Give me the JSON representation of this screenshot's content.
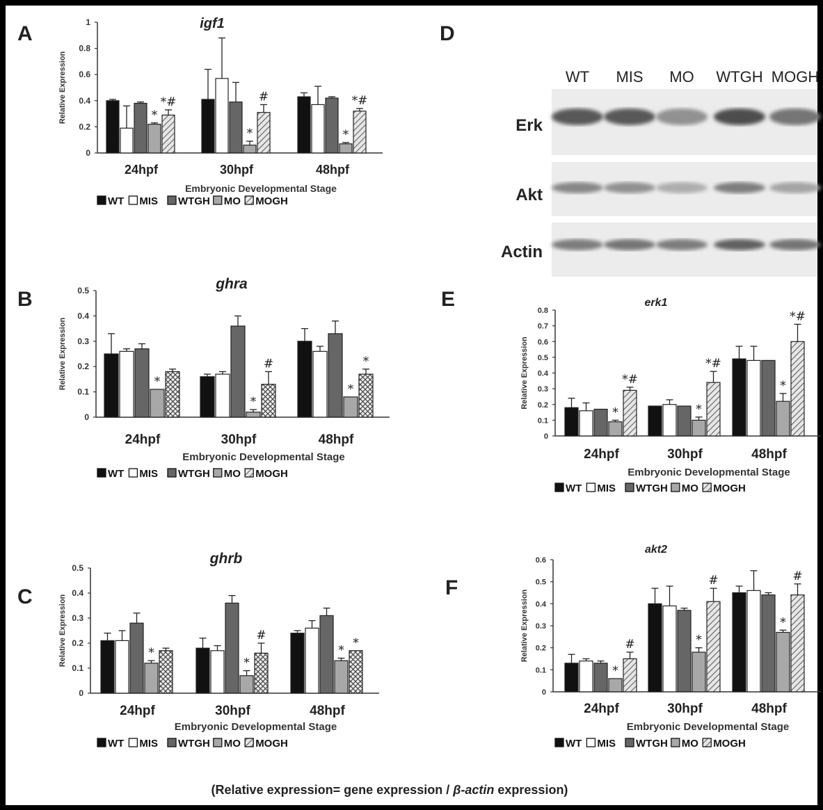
{
  "colors": {
    "WT": "#111111",
    "MIS": "#ffffff",
    "WTGH": "#666666",
    "MO": "#a8a8a8",
    "MOGH": "#bcbcbc",
    "axis": "#333333",
    "text": "#222222"
  },
  "legend": [
    "WT",
    "MIS",
    "WTGH",
    "MO",
    "MOGH"
  ],
  "footnote": {
    "pre": "(Relative expression= gene expression / ",
    "italic": "β-actin",
    "post": " expression)"
  },
  "blot": {
    "letter": "D",
    "lanes": [
      "WT",
      "MIS",
      "MO",
      "WTGH",
      "MOGH"
    ],
    "rows": [
      {
        "label": "Erk",
        "intensity": [
          0.75,
          0.75,
          0.45,
          0.8,
          0.6
        ]
      },
      {
        "label": "Akt",
        "intensity": [
          0.5,
          0.45,
          0.3,
          0.55,
          0.35
        ]
      },
      {
        "label": "Actin",
        "intensity": [
          0.55,
          0.6,
          0.55,
          0.7,
          0.6
        ]
      }
    ]
  },
  "chart_data": [
    {
      "letter": "A",
      "title": "igf1",
      "type": "bar",
      "ylabel": "Relative Expression",
      "xlabel": "Embryonic Developmental Stage",
      "categories": [
        "24hpf",
        "30hpf",
        "48hpf"
      ],
      "yticks": [
        "0",
        "0.2",
        "0.4",
        "0.6",
        "0.8",
        "1"
      ],
      "ylim": [
        0,
        1
      ],
      "series": [
        {
          "name": "WT",
          "values": [
            0.4,
            0.41,
            0.43
          ],
          "errors": [
            0.01,
            0.23,
            0.03
          ]
        },
        {
          "name": "MIS",
          "values": [
            0.19,
            0.57,
            0.37
          ],
          "errors": [
            0.17,
            0.31,
            0.14
          ]
        },
        {
          "name": "WTGH",
          "values": [
            0.38,
            0.39,
            0.42
          ],
          "errors": [
            0.01,
            0.15,
            0.01
          ]
        },
        {
          "name": "MO",
          "values": [
            0.22,
            0.06,
            0.07
          ],
          "errors": [
            0.01,
            0.03,
            0.01
          ]
        },
        {
          "name": "MOGH",
          "values": [
            0.29,
            0.31,
            0.32
          ],
          "errors": [
            0.04,
            0.06,
            0.02
          ]
        }
      ],
      "annotations": [
        [
          "*",
          "*#"
        ],
        [
          "*",
          "#"
        ],
        [
          "*",
          "*#"
        ]
      ]
    },
    {
      "letter": "B",
      "title": "ghra",
      "type": "bar",
      "ylabel": "Relative Expression",
      "xlabel": "Embryonic Developmental Stage",
      "categories": [
        "24hpf",
        "30hpf",
        "48hpf"
      ],
      "yticks": [
        "0",
        "0.1",
        "0.2",
        "0.3",
        "0.4",
        "0.5"
      ],
      "ylim": [
        0,
        0.5
      ],
      "series": [
        {
          "name": "WT",
          "values": [
            0.25,
            0.16,
            0.3
          ],
          "errors": [
            0.08,
            0.01,
            0.05
          ]
        },
        {
          "name": "MIS",
          "values": [
            0.26,
            0.17,
            0.26
          ],
          "errors": [
            0.01,
            0.01,
            0.02
          ]
        },
        {
          "name": "WTGH",
          "values": [
            0.27,
            0.36,
            0.33
          ],
          "errors": [
            0.02,
            0.04,
            0.05
          ]
        },
        {
          "name": "MO",
          "values": [
            0.11,
            0.02,
            0.08
          ],
          "errors": [
            0.0,
            0.01,
            0.0
          ]
        },
        {
          "name": "MOGH",
          "values": [
            0.18,
            0.13,
            0.17
          ],
          "errors": [
            0.01,
            0.05,
            0.02
          ]
        }
      ],
      "annotations": [
        [
          "*",
          ""
        ],
        [
          "*",
          "#"
        ],
        [
          "*",
          "*"
        ]
      ]
    },
    {
      "letter": "C",
      "title": "ghrb",
      "type": "bar",
      "ylabel": "Relative Expression",
      "xlabel": "Embryonic Developmental Stage",
      "categories": [
        "24hpf",
        "30hpf",
        "48hpf"
      ],
      "yticks": [
        "0",
        "0.1",
        "0.2",
        "0.3",
        "0.4",
        "0.5"
      ],
      "ylim": [
        0,
        0.5
      ],
      "series": [
        {
          "name": "WT",
          "values": [
            0.21,
            0.18,
            0.24
          ],
          "errors": [
            0.03,
            0.04,
            0.01
          ]
        },
        {
          "name": "MIS",
          "values": [
            0.21,
            0.17,
            0.26
          ],
          "errors": [
            0.04,
            0.02,
            0.03
          ]
        },
        {
          "name": "WTGH",
          "values": [
            0.28,
            0.36,
            0.31
          ],
          "errors": [
            0.04,
            0.03,
            0.03
          ]
        },
        {
          "name": "MO",
          "values": [
            0.12,
            0.07,
            0.13
          ],
          "errors": [
            0.01,
            0.02,
            0.01
          ]
        },
        {
          "name": "MOGH",
          "values": [
            0.17,
            0.16,
            0.17
          ],
          "errors": [
            0.01,
            0.04,
            0.0
          ]
        }
      ],
      "annotations": [
        [
          "*",
          ""
        ],
        [
          "*",
          "#"
        ],
        [
          "*",
          "*"
        ]
      ]
    },
    {
      "letter": "E",
      "title": "erk1",
      "type": "bar",
      "ylabel": "Relative Expression",
      "xlabel": "Embryonic Developmental Stage",
      "categories": [
        "24hpf",
        "30hpf",
        "48hpf"
      ],
      "yticks": [
        "0",
        "0.1",
        "0.2",
        "0.3",
        "0.4",
        "0.5",
        "0.6",
        "0.7",
        "0.8"
      ],
      "ylim": [
        0,
        0.8
      ],
      "series": [
        {
          "name": "WT",
          "values": [
            0.18,
            0.19,
            0.49
          ],
          "errors": [
            0.06,
            0.0,
            0.08
          ]
        },
        {
          "name": "MIS",
          "values": [
            0.16,
            0.2,
            0.48
          ],
          "errors": [
            0.05,
            0.03,
            0.09
          ]
        },
        {
          "name": "WTGH",
          "values": [
            0.17,
            0.19,
            0.48
          ],
          "errors": [
            0.0,
            0.0,
            0.0
          ]
        },
        {
          "name": "MO",
          "values": [
            0.09,
            0.1,
            0.22
          ],
          "errors": [
            0.01,
            0.02,
            0.05
          ]
        },
        {
          "name": "MOGH",
          "values": [
            0.29,
            0.34,
            0.6
          ],
          "errors": [
            0.02,
            0.07,
            0.11
          ]
        }
      ],
      "annotations": [
        [
          "*",
          "*#"
        ],
        [
          "*",
          "*#"
        ],
        [
          "*",
          "*#"
        ]
      ]
    },
    {
      "letter": "F",
      "title": "akt2",
      "type": "bar",
      "ylabel": "Relative Expression",
      "xlabel": "Embryonic Developmental Stage",
      "categories": [
        "24hpf",
        "30hpf",
        "48hpf"
      ],
      "yticks": [
        "0",
        "0.1",
        "0.2",
        "0.3",
        "0.4",
        "0.5",
        "0.6"
      ],
      "ylim": [
        0,
        0.6
      ],
      "series": [
        {
          "name": "WT",
          "values": [
            0.13,
            0.4,
            0.45
          ],
          "errors": [
            0.04,
            0.07,
            0.03
          ]
        },
        {
          "name": "MIS",
          "values": [
            0.14,
            0.39,
            0.46
          ],
          "errors": [
            0.01,
            0.09,
            0.09
          ]
        },
        {
          "name": "WTGH",
          "values": [
            0.13,
            0.37,
            0.44
          ],
          "errors": [
            0.01,
            0.01,
            0.01
          ]
        },
        {
          "name": "MO",
          "values": [
            0.06,
            0.18,
            0.27
          ],
          "errors": [
            0.0,
            0.02,
            0.01
          ]
        },
        {
          "name": "MOGH",
          "values": [
            0.15,
            0.41,
            0.44
          ],
          "errors": [
            0.03,
            0.06,
            0.05
          ]
        }
      ],
      "annotations": [
        [
          "*",
          "#"
        ],
        [
          "*",
          "#"
        ],
        [
          "*",
          "#"
        ]
      ]
    }
  ]
}
